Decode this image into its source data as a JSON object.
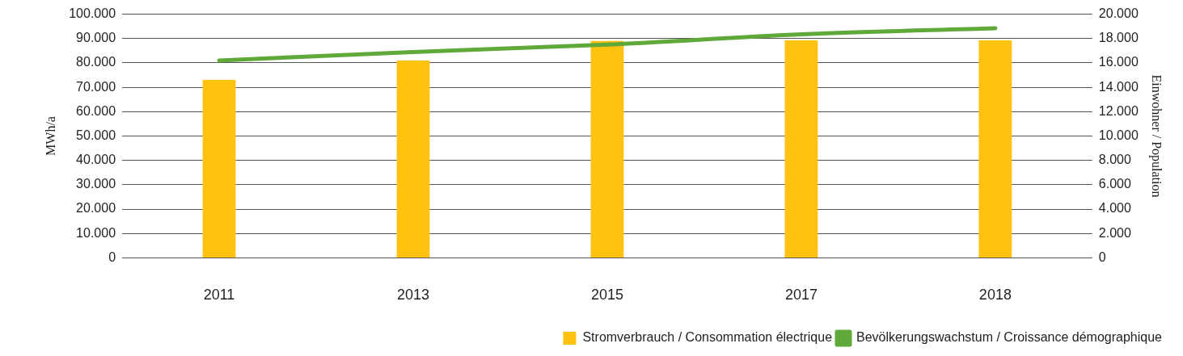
{
  "chart_data": {
    "type": "bar",
    "ylabel": "MWh/a",
    "y2label": "Einwohner / Population",
    "categories": [
      "2011",
      "2013",
      "2015",
      "2017",
      "2018"
    ],
    "series": [
      {
        "name": "Stromverbrauch / Consommation électrique",
        "color": "#ffc20e",
        "values": [
          73000,
          81000,
          89000,
          89300,
          89300
        ]
      },
      {
        "name": "Bevölkerungswachstum / Croissance démographique",
        "type": "line",
        "axis": "y2",
        "color": "#5fa83a",
        "values": [
          16200,
          16900,
          17500,
          18350,
          18850
        ]
      }
    ],
    "ylim": [
      0,
      100000
    ],
    "yticks": [
      0,
      {
        "value": 10000,
        "label": "10.000"
      },
      {
        "value": 20000,
        "label": "20.000"
      },
      {
        "value": 30000,
        "label": "30.000"
      },
      {
        "value": 40000,
        "label": "40.000"
      },
      {
        "value": 50000,
        "label": "50.000"
      },
      {
        "value": 60000,
        "label": "60.000"
      },
      {
        "value": 70000,
        "label": "70.000"
      },
      {
        "value": 80000,
        "label": "80.000"
      },
      {
        "value": 90000,
        "label": "90.000"
      },
      {
        "value": 100000,
        "label": "100.000"
      }
    ],
    "y2lim": [
      0,
      20000
    ],
    "y2ticks": [
      0,
      {
        "value": 2000,
        "label": "2.000"
      },
      {
        "value": 4000,
        "label": "4.000"
      },
      {
        "value": 6000,
        "label": "6.000"
      },
      {
        "value": 8000,
        "label": "8.000"
      },
      {
        "value": 10000,
        "label": "10.000"
      },
      {
        "value": 12000,
        "label": "12.000"
      },
      {
        "value": 14000,
        "label": "14.000"
      },
      {
        "value": 16000,
        "label": "16.000"
      },
      {
        "value": 18000,
        "label": "18.000"
      },
      {
        "value": 20000,
        "label": "20.000"
      }
    ],
    "grid": "y",
    "legend": "bottom right",
    "marker": "none",
    "line_style": "solid"
  }
}
